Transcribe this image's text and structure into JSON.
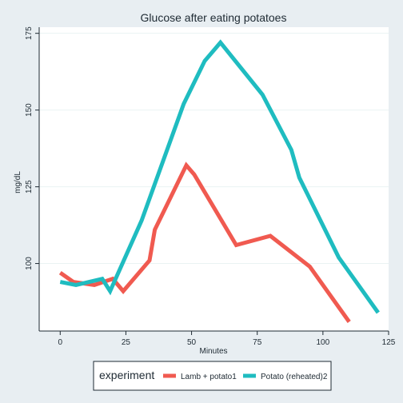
{
  "chart_data": {
    "type": "line",
    "title": "Glucose after eating potatoes",
    "xlabel": "Minutes",
    "ylabel": "mg/dL",
    "xlim": [
      -8,
      125
    ],
    "ylim": [
      78,
      177
    ],
    "xticks": [
      0,
      25,
      50,
      75,
      100,
      125
    ],
    "yticks": [
      100,
      125,
      150,
      175
    ],
    "grid": true,
    "legend": {
      "title": "experiment",
      "position": "bottom"
    },
    "series": [
      {
        "name": "Lamb + potato1",
        "color": "#f05a50",
        "x": [
          0,
          5,
          13,
          20,
          24,
          34,
          36,
          48,
          51,
          67,
          80,
          95,
          110
        ],
        "y": [
          97,
          94,
          93,
          95,
          91,
          101,
          111,
          132,
          129,
          106,
          109,
          99,
          81
        ]
      },
      {
        "name": "Potato (reheated)2",
        "color": "#1fbcc0",
        "x": [
          0,
          6,
          16,
          19,
          31,
          47,
          55,
          61,
          77,
          88,
          91,
          106,
          121
        ],
        "y": [
          94,
          93,
          95,
          91,
          114,
          152,
          166,
          172,
          155,
          137,
          128,
          102,
          84
        ]
      }
    ]
  }
}
